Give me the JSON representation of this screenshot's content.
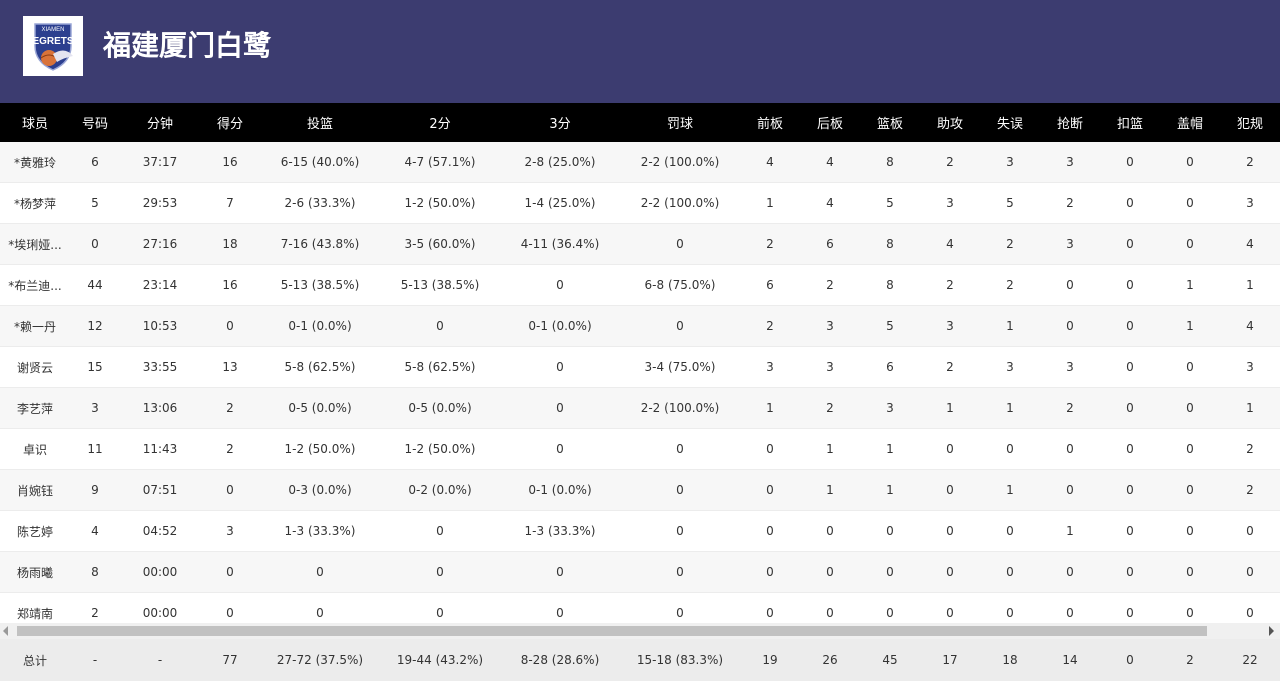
{
  "header": {
    "team_name": "福建厦门白鹭",
    "logo_top_text": "XIAMEN",
    "logo_main_text": "EGRETS",
    "bg_color": "#3c3c70"
  },
  "columns": [
    "球员",
    "号码",
    "分钟",
    "得分",
    "投篮",
    "2分",
    "3分",
    "罚球",
    "前板",
    "后板",
    "篮板",
    "助攻",
    "失误",
    "抢断",
    "扣篮",
    "盖帽",
    "犯规"
  ],
  "rows": [
    [
      "*黄雅玲",
      "6",
      "37:17",
      "16",
      "6-15 (40.0%)",
      "4-7 (57.1%)",
      "2-8 (25.0%)",
      "2-2 (100.0%)",
      "4",
      "4",
      "8",
      "2",
      "3",
      "3",
      "0",
      "0",
      "2"
    ],
    [
      "*杨梦萍",
      "5",
      "29:53",
      "7",
      "2-6 (33.3%)",
      "1-2 (50.0%)",
      "1-4 (25.0%)",
      "2-2 (100.0%)",
      "1",
      "4",
      "5",
      "3",
      "5",
      "2",
      "0",
      "0",
      "3"
    ],
    [
      "*埃琍娅...",
      "0",
      "27:16",
      "18",
      "7-16 (43.8%)",
      "3-5 (60.0%)",
      "4-11 (36.4%)",
      "0",
      "2",
      "6",
      "8",
      "4",
      "2",
      "3",
      "0",
      "0",
      "4"
    ],
    [
      "*布兰迪...",
      "44",
      "23:14",
      "16",
      "5-13 (38.5%)",
      "5-13 (38.5%)",
      "0",
      "6-8 (75.0%)",
      "6",
      "2",
      "8",
      "2",
      "2",
      "0",
      "0",
      "1",
      "1"
    ],
    [
      "*赖一丹",
      "12",
      "10:53",
      "0",
      "0-1 (0.0%)",
      "0",
      "0-1 (0.0%)",
      "0",
      "2",
      "3",
      "5",
      "3",
      "1",
      "0",
      "0",
      "1",
      "4"
    ],
    [
      "谢贤云",
      "15",
      "33:55",
      "13",
      "5-8 (62.5%)",
      "5-8 (62.5%)",
      "0",
      "3-4 (75.0%)",
      "3",
      "3",
      "6",
      "2",
      "3",
      "3",
      "0",
      "0",
      "3"
    ],
    [
      "李艺萍",
      "3",
      "13:06",
      "2",
      "0-5 (0.0%)",
      "0-5 (0.0%)",
      "0",
      "2-2 (100.0%)",
      "1",
      "2",
      "3",
      "1",
      "1",
      "2",
      "0",
      "0",
      "1"
    ],
    [
      "卓识",
      "11",
      "11:43",
      "2",
      "1-2 (50.0%)",
      "1-2 (50.0%)",
      "0",
      "0",
      "0",
      "1",
      "1",
      "0",
      "0",
      "0",
      "0",
      "0",
      "2"
    ],
    [
      "肖婉钰",
      "9",
      "07:51",
      "0",
      "0-3 (0.0%)",
      "0-2 (0.0%)",
      "0-1 (0.0%)",
      "0",
      "0",
      "1",
      "1",
      "0",
      "1",
      "0",
      "0",
      "0",
      "2"
    ],
    [
      "陈艺婷",
      "4",
      "04:52",
      "3",
      "1-3 (33.3%)",
      "0",
      "1-3 (33.3%)",
      "0",
      "0",
      "0",
      "0",
      "0",
      "0",
      "1",
      "0",
      "0",
      "0"
    ],
    [
      "杨雨曦",
      "8",
      "00:00",
      "0",
      "0",
      "0",
      "0",
      "0",
      "0",
      "0",
      "0",
      "0",
      "0",
      "0",
      "0",
      "0",
      "0"
    ],
    [
      "郑靖南",
      "2",
      "00:00",
      "0",
      "0",
      "0",
      "0",
      "0",
      "0",
      "0",
      "0",
      "0",
      "0",
      "0",
      "0",
      "0",
      "0"
    ]
  ],
  "totals": [
    "总计",
    "-",
    "-",
    "77",
    "27-72 (37.5%)",
    "19-44 (43.2%)",
    "8-28 (28.6%)",
    "15-18 (83.3%)",
    "19",
    "26",
    "45",
    "17",
    "18",
    "14",
    "0",
    "2",
    "22"
  ]
}
